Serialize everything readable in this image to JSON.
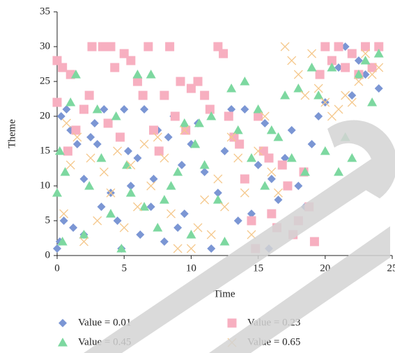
{
  "chart_data": {
    "type": "scatter",
    "x_label": "Time",
    "y_label": "Theme",
    "xlim": [
      0,
      25
    ],
    "ylim": [
      0,
      35
    ],
    "xticks": [
      0,
      5,
      10,
      15,
      20,
      25
    ],
    "yticks": [
      0,
      5,
      10,
      15,
      20,
      25,
      30,
      35
    ],
    "grid": false,
    "legend": "bottom",
    "series": [
      {
        "name": "Value = 0.01",
        "color": "#7b96d4",
        "marker": "diamond",
        "x": [
          0,
          0.2,
          0.5,
          0.3,
          0.7,
          1,
          1.2,
          1.5,
          2,
          2,
          2.5,
          2.8,
          3,
          3.3,
          3.5,
          4,
          4.5,
          4.8,
          5,
          5.3,
          5.5,
          6,
          6.2,
          6.5,
          7,
          7.2,
          7.5,
          8,
          8.3,
          8.7,
          9,
          9.3,
          9.5,
          10,
          10.5,
          11,
          11.5,
          12,
          12.5,
          13,
          13.5,
          14,
          14.5,
          15,
          15.5,
          15.8,
          16,
          16.5,
          17,
          17.5,
          18,
          18.5,
          19,
          19.5,
          20,
          21,
          21.5,
          22,
          22.5,
          23,
          24
        ],
        "y": [
          1,
          2,
          5,
          20,
          21,
          18,
          4,
          16,
          11,
          3,
          17,
          19,
          16,
          7,
          21,
          9,
          5,
          1,
          21,
          15,
          10,
          14,
          3,
          21,
          7,
          11,
          18,
          2,
          17,
          20,
          4,
          13,
          6,
          16,
          19,
          12,
          1,
          9,
          15,
          21,
          5,
          21,
          6,
          13,
          19,
          1,
          11,
          8,
          14,
          18,
          10,
          7,
          16,
          20,
          22,
          27,
          30,
          23,
          28,
          26,
          24
        ]
      },
      {
        "name": "Value = 0.23",
        "color": "#f7afc0",
        "marker": "square",
        "x": [
          0,
          0,
          0.4,
          0.8,
          1,
          1.4,
          2,
          2.4,
          2.6,
          3.4,
          3.8,
          4,
          4.3,
          4.7,
          5,
          5.5,
          6,
          6.4,
          6.8,
          7.2,
          7.6,
          8,
          8.4,
          8.8,
          9.2,
          9.6,
          10,
          10.5,
          11,
          11.4,
          12,
          12.4,
          12.8,
          13.2,
          13.6,
          14,
          14.5,
          14.8,
          15,
          15.4,
          15.8,
          16,
          16.4,
          16.8,
          17.2,
          17.6,
          18,
          18.4,
          18.8,
          19.2,
          19.6,
          20,
          20.5,
          21,
          21.5,
          22,
          22.5,
          23,
          23.5,
          24
        ],
        "y": [
          22,
          28,
          27,
          15,
          26,
          18,
          21,
          23,
          30,
          30,
          19,
          30,
          27,
          17,
          29,
          28,
          25,
          23,
          30,
          18,
          15,
          23,
          30,
          20,
          25,
          18,
          24,
          25,
          23,
          21,
          30,
          29,
          20,
          17,
          16,
          11,
          5,
          1,
          20,
          15,
          14,
          6,
          4,
          13,
          10,
          3,
          5,
          12,
          7,
          2,
          26,
          30,
          28,
          30,
          27,
          29,
          26,
          30,
          27,
          30
        ]
      },
      {
        "name": "Value = 0.45",
        "color": "#7dd8a0",
        "marker": "triangle",
        "x": [
          0,
          0.2,
          0.4,
          0.6,
          1,
          1.4,
          2,
          2.4,
          3,
          3.3,
          4,
          4.4,
          4.8,
          5.2,
          5.5,
          6,
          6.5,
          7,
          7.5,
          8,
          8.5,
          9,
          9.5,
          10,
          10.3,
          10.6,
          11,
          11.5,
          12,
          12.5,
          13,
          13.5,
          14,
          14.5,
          15,
          15.5,
          16,
          16.5,
          17,
          17.5,
          18,
          18.5,
          19,
          19.5,
          20,
          20.5,
          21,
          21.5,
          22,
          22.5,
          23,
          23.5,
          24
        ],
        "y": [
          9,
          15,
          2,
          12,
          22,
          26,
          3,
          10,
          21,
          14,
          6,
          20,
          1,
          13,
          9,
          26,
          7,
          26,
          4,
          8,
          10,
          12,
          19,
          3,
          16,
          19,
          13,
          20,
          8,
          2,
          24,
          18,
          25,
          14,
          21,
          10,
          18,
          17,
          23,
          14,
          24,
          12,
          27,
          23,
          15,
          27,
          12,
          17,
          14,
          26,
          28,
          22,
          29
        ]
      },
      {
        "name": "Value = 0.65",
        "color": "#f5c98e",
        "marker": "cross",
        "x": [
          0.5,
          0.7,
          1,
          1.5,
          2,
          2.5,
          3,
          3.5,
          4,
          4.5,
          5,
          5.5,
          6,
          6.5,
          7,
          7.5,
          8,
          8.5,
          9,
          9.5,
          10,
          10.5,
          11,
          11.5,
          12,
          12.5,
          13,
          13.5,
          14,
          14.5,
          15,
          15.5,
          16,
          16.5,
          17,
          17.5,
          18,
          18.5,
          19,
          19.5,
          20,
          20.5,
          21,
          21.5,
          22,
          22.5,
          23,
          23.5,
          24
        ],
        "y": [
          6,
          19,
          13,
          17,
          2,
          14,
          5,
          12,
          9,
          15,
          4,
          13,
          7,
          16,
          10,
          17,
          14,
          6,
          1,
          18,
          1,
          4,
          8,
          3,
          11,
          7,
          17,
          14,
          9,
          3,
          15,
          20,
          12,
          9,
          30,
          28,
          26,
          23,
          29,
          24,
          22,
          20,
          21,
          23,
          22,
          25,
          29,
          26,
          27
        ]
      }
    ]
  }
}
